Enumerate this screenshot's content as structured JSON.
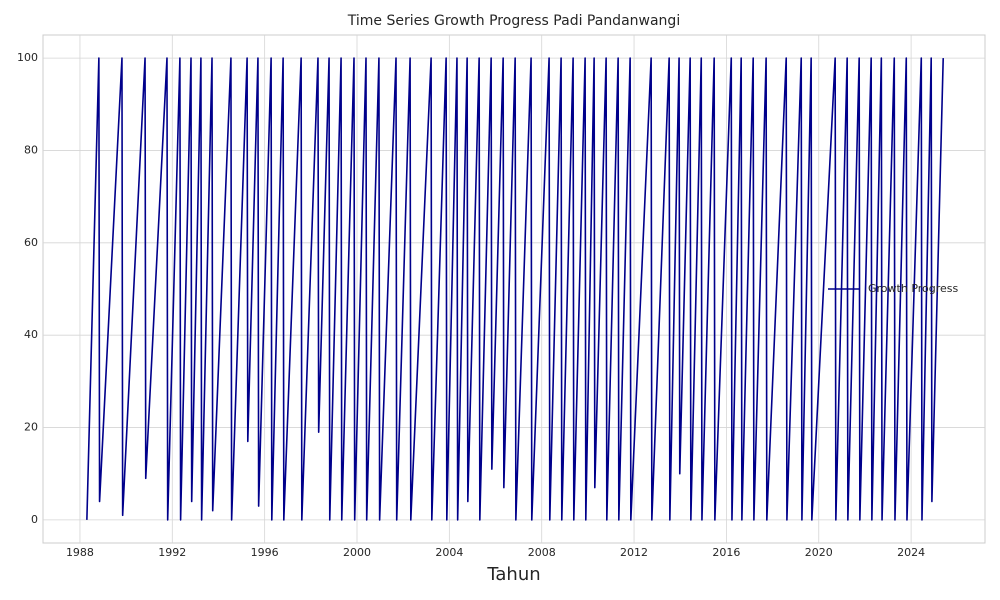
{
  "chart_data": {
    "type": "line",
    "title": "Time Series Growth Progress Padi Pandanwangi",
    "x_label": "Tahun",
    "x": [
      1988.3,
      1988.82,
      1988.85,
      1989.82,
      1989.85,
      1990.82,
      1990.85,
      1991.77,
      1991.8,
      1992.33,
      1992.36,
      1992.81,
      1992.84,
      1993.24,
      1993.27,
      1993.72,
      1993.75,
      1994.54,
      1994.57,
      1995.24,
      1995.27,
      1995.71,
      1995.74,
      1996.28,
      1996.31,
      1996.8,
      1996.83,
      1997.58,
      1997.61,
      1998.31,
      1998.34,
      1998.79,
      1998.82,
      1999.31,
      1999.34,
      1999.87,
      1999.9,
      2000.39,
      2000.42,
      2000.95,
      2000.98,
      2001.69,
      2001.72,
      2002.3,
      2002.33,
      2003.21,
      2003.24,
      2003.86,
      2003.89,
      2004.33,
      2004.36,
      2004.77,
      2004.8,
      2005.29,
      2005.32,
      2005.81,
      2005.84,
      2006.33,
      2006.36,
      2006.85,
      2006.88,
      2007.54,
      2007.57,
      2008.32,
      2008.35,
      2008.84,
      2008.87,
      2009.36,
      2009.39,
      2009.88,
      2009.91,
      2010.27,
      2010.3,
      2010.79,
      2010.82,
      2011.31,
      2011.34,
      2011.83,
      2011.86,
      2012.74,
      2012.77,
      2013.52,
      2013.55,
      2013.95,
      2013.98,
      2014.43,
      2014.46,
      2014.91,
      2014.94,
      2015.47,
      2015.5,
      2016.21,
      2016.24,
      2016.64,
      2016.67,
      2017.16,
      2017.19,
      2017.72,
      2017.75,
      2018.59,
      2018.62,
      2019.24,
      2019.27,
      2019.67,
      2019.7,
      2020.71,
      2020.74,
      2021.23,
      2021.26,
      2021.75,
      2021.78,
      2022.27,
      2022.3,
      2022.71,
      2022.74,
      2023.27,
      2023.3,
      2023.79,
      2023.82,
      2024.44,
      2024.47,
      2024.87,
      2024.9,
      2025.39
    ],
    "series": [
      {
        "name": "Growth Progress",
        "color": "#00008b",
        "values": [
          0,
          100,
          4,
          100,
          1,
          100,
          9,
          100,
          0,
          100,
          0,
          100,
          4,
          100,
          0,
          100,
          2,
          100,
          0,
          100,
          17,
          100,
          3,
          100,
          0,
          100,
          0,
          100,
          0,
          100,
          19,
          100,
          0,
          100,
          0,
          100,
          0,
          100,
          0,
          100,
          0,
          100,
          0,
          100,
          0,
          100,
          0,
          100,
          0,
          100,
          0,
          100,
          4,
          100,
          0,
          100,
          11,
          100,
          7,
          100,
          0,
          100,
          0,
          100,
          0,
          100,
          0,
          100,
          0,
          100,
          0,
          100,
          7,
          100,
          0,
          100,
          0,
          100,
          0,
          100,
          0,
          100,
          0,
          100,
          10,
          100,
          0,
          100,
          0,
          100,
          0,
          100,
          0,
          100,
          0,
          100,
          0,
          100,
          0,
          100,
          0,
          100,
          0,
          100,
          0,
          100,
          0,
          100,
          0,
          100,
          0,
          100,
          0,
          100,
          0,
          100,
          0,
          100,
          0,
          100,
          0,
          100,
          4,
          100
        ]
      }
    ],
    "xlim": [
      1986.4,
      2027.2
    ],
    "ylim": [
      -5,
      105
    ],
    "xticks": [
      1988,
      1992,
      1996,
      2000,
      2004,
      2008,
      2012,
      2016,
      2020,
      2024
    ],
    "yticks": [
      0,
      20,
      40,
      60,
      80,
      100
    ],
    "grid": true,
    "legend": "center right"
  }
}
